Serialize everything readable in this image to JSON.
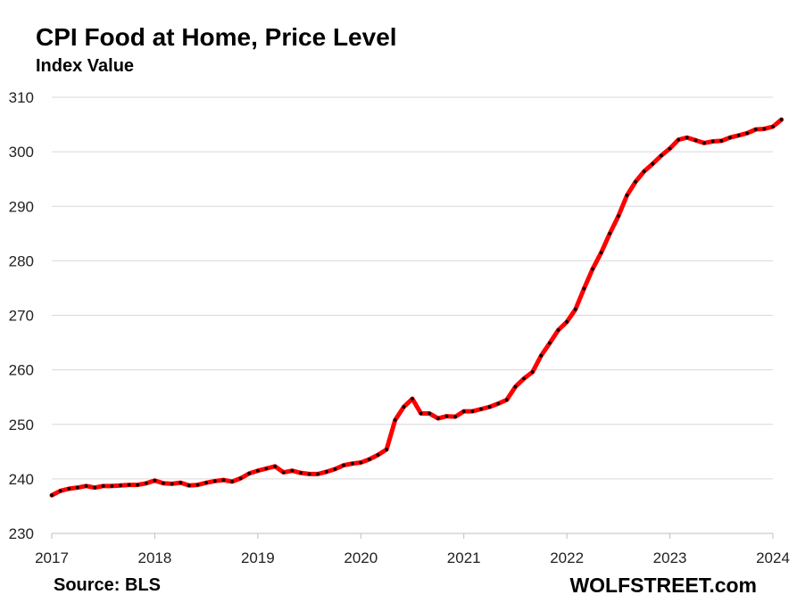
{
  "chart_data": {
    "type": "line",
    "title": "CPI Food at Home, Price Level",
    "subtitle": "Index Value",
    "xlabel": "",
    "ylabel": "Index Value",
    "ylim": [
      230,
      310
    ],
    "xlim": [
      2017,
      2024
    ],
    "grid": true,
    "y_ticks": [
      "230",
      "240",
      "250",
      "260",
      "270",
      "280",
      "290",
      "300",
      "310"
    ],
    "x_ticks": [
      "2017",
      "2018",
      "2019",
      "2020",
      "2021",
      "2022",
      "2023",
      "2024"
    ],
    "series": [
      {
        "name": "CPI Food at Home",
        "color": "#ff0000",
        "marker_color": "#000000",
        "start": "2017-01",
        "frequency": "monthly",
        "values": [
          237.0,
          237.8,
          238.2,
          238.4,
          238.7,
          238.4,
          238.7,
          238.7,
          238.8,
          238.9,
          238.9,
          239.2,
          239.7,
          239.2,
          239.1,
          239.3,
          238.8,
          238.9,
          239.3,
          239.6,
          239.8,
          239.5,
          240.1,
          241.0,
          241.5,
          241.9,
          242.3,
          241.2,
          241.5,
          241.1,
          240.9,
          240.9,
          241.3,
          241.8,
          242.5,
          242.8,
          243.0,
          243.6,
          244.4,
          245.4,
          250.8,
          253.2,
          254.7,
          252.0,
          252.0,
          251.1,
          251.5,
          251.4,
          252.4,
          252.4,
          252.8,
          253.2,
          253.8,
          254.5,
          256.9,
          258.4,
          259.6,
          262.6,
          264.9,
          267.3,
          268.8,
          271.1,
          274.9,
          278.5,
          281.5,
          285.0,
          288.2,
          292.0,
          294.5,
          296.4,
          297.8,
          299.3,
          300.6,
          302.2,
          302.6,
          302.1,
          301.6,
          301.9,
          302.0,
          302.6,
          303.0,
          303.4,
          304.1,
          304.2,
          304.6,
          305.9
        ]
      }
    ]
  },
  "footer": {
    "source": "Source: BLS",
    "brand": "WOLFSTREET.com"
  }
}
